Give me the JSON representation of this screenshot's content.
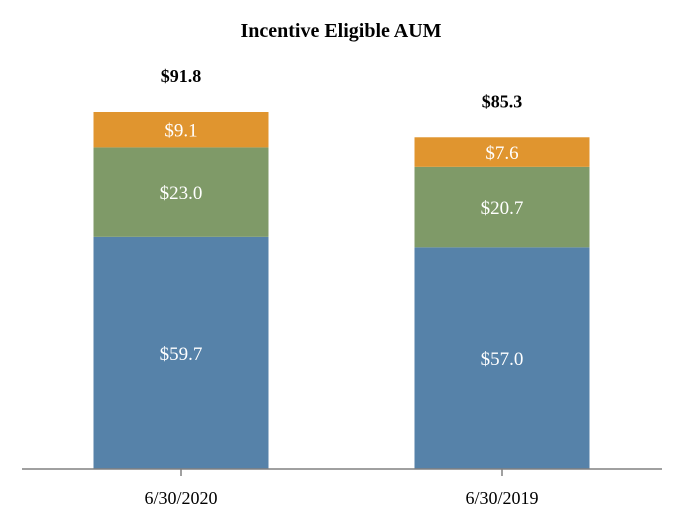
{
  "chart_data": {
    "type": "bar",
    "stacked": true,
    "title": "Incentive Eligible AUM",
    "categories": [
      "6/30/2020",
      "6/30/2019"
    ],
    "series": [
      {
        "name": "bottom",
        "color": "#5682a9",
        "values": [
          59.7,
          57.0
        ],
        "labels": [
          "$59.7",
          "$57.0"
        ]
      },
      {
        "name": "middle",
        "color": "#7f9a68",
        "values": [
          23.0,
          20.7
        ],
        "labels": [
          "$23.0",
          "$20.7"
        ]
      },
      {
        "name": "top",
        "color": "#e0952f",
        "values": [
          9.1,
          7.6
        ],
        "labels": [
          "$9.1",
          "$7.6"
        ]
      }
    ],
    "totals": [
      91.8,
      85.3
    ],
    "total_labels": [
      "$91.8",
      "$85.3"
    ],
    "xlabel": "",
    "ylabel": "",
    "ylim": [
      0,
      91.8
    ],
    "grid": false,
    "legend": "none"
  }
}
